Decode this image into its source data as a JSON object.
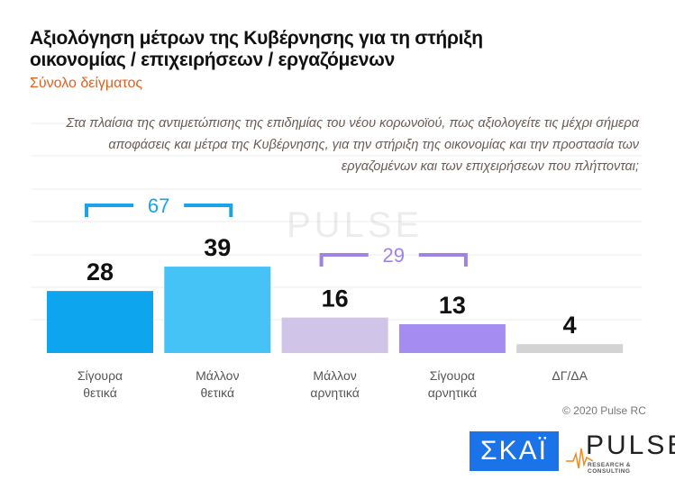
{
  "title_line1": "Αξιολόγηση μέτρων της Κυβέρνησης για τη στήριξη",
  "title_line2": "οικονομίας / επιχειρήσεων / εργαζόμενων",
  "subtitle": "Σύνολο δείγματος",
  "question": "Στα πλαίσια της αντιμετώπισης της επιδημίας του νέου κορωνοϊού, πως αξιολογείτε τις μέχρι σήμερα αποφάσεις και μέτρα της Κυβέρνησης, για την στήριξη της οικονομίας και την προστασία των εργαζομένων και των επιχειρήσεων που πλήττονται;",
  "copyright": "© 2020 Pulse RC",
  "logos": {
    "skai": "ΣΚΑΪ",
    "pulse": "PULSE",
    "pulse_sub": "RESEARCH & CONSULTING"
  },
  "chart_data": {
    "type": "bar",
    "categories": [
      [
        "Σίγουρα",
        "θετικά"
      ],
      [
        "Μάλλον",
        "θετικά"
      ],
      [
        "Μάλλον",
        "αρνητικά"
      ],
      [
        "Σίγουρα",
        "αρνητικά"
      ],
      [
        "ΔΓ/ΔΑ"
      ]
    ],
    "values": [
      28,
      39,
      16,
      13,
      4
    ],
    "colors": [
      "#0ea5ef",
      "#45c2f6",
      "#d0c4e8",
      "#a48cf0",
      "#d3d3d3"
    ],
    "groups": [
      {
        "label": "67",
        "from": 0,
        "to": 1,
        "color": "#1aa3e6"
      },
      {
        "label": "29",
        "from": 2,
        "to": 3,
        "color": "#9f82e6"
      }
    ],
    "ylim": [
      0,
      60
    ]
  }
}
